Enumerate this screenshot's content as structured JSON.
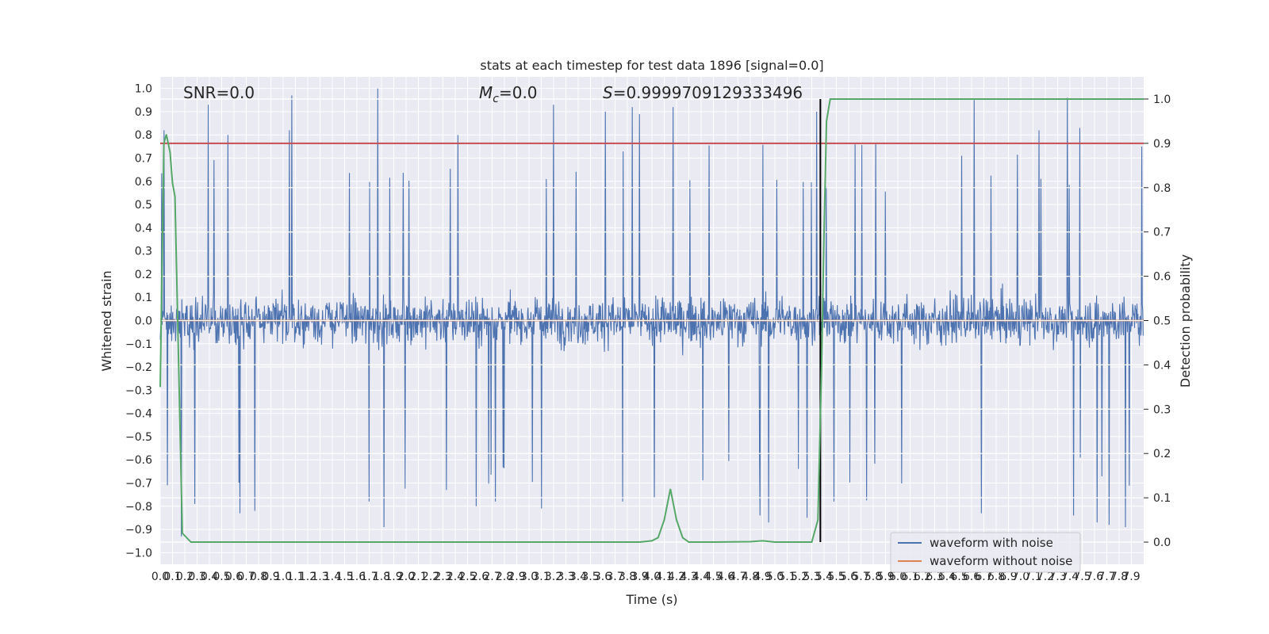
{
  "chart_data": {
    "type": "line",
    "title": "stats at each timestep for test data 1896 [signal=0.0]",
    "xlabel": "Time (s)",
    "ylabel": "Whitened strain",
    "y2label": "Detection probability",
    "xlim": [
      0.0,
      8.0
    ],
    "ylim": [
      -1.05,
      1.05
    ],
    "y2lim": [
      -0.05,
      1.05
    ],
    "xticks": [
      0.0,
      0.1,
      0.2,
      0.3,
      0.4,
      0.5,
      0.6,
      0.7,
      0.8,
      0.9,
      1.0,
      1.1,
      1.2,
      1.3,
      1.4,
      1.5,
      1.6,
      1.7,
      1.8,
      1.9,
      2.0,
      2.1,
      2.2,
      2.3,
      2.4,
      2.5,
      2.6,
      2.7,
      2.8,
      2.9,
      3.0,
      3.1,
      3.2,
      3.3,
      3.4,
      3.5,
      3.6,
      3.7,
      3.8,
      3.9,
      4.0,
      4.1,
      4.2,
      4.3,
      4.4,
      4.5,
      4.6,
      4.7,
      4.8,
      4.9,
      5.0,
      5.1,
      5.2,
      5.3,
      5.4,
      5.5,
      5.6,
      5.7,
      5.8,
      5.9,
      6.0,
      6.1,
      6.2,
      6.3,
      6.4,
      6.5,
      6.6,
      6.7,
      6.8,
      6.9,
      7.0,
      7.1,
      7.2,
      7.3,
      7.4,
      7.5,
      7.6,
      7.7,
      7.8,
      7.9
    ],
    "yticks": [
      -1.0,
      -0.9,
      -0.8,
      -0.7,
      -0.6,
      -0.5,
      -0.4,
      -0.3,
      -0.2,
      -0.1,
      0.0,
      0.1,
      0.2,
      0.3,
      0.4,
      0.5,
      0.6,
      0.7,
      0.8,
      0.9,
      1.0
    ],
    "y2ticks": [
      0.0,
      0.1,
      0.2,
      0.3,
      0.4,
      0.5,
      0.6,
      0.7,
      0.8,
      0.9,
      1.0
    ],
    "grid": true,
    "legend_position": "lower-right",
    "annotations": {
      "snr": "SNR=0.0",
      "mc_symbol": "M",
      "mc_sub": "c",
      "mc_value": "=0.0",
      "s_symbol": "S",
      "s_value": "=0.9999709129333496"
    },
    "threshold_line": {
      "axis": "y2",
      "value": 0.9,
      "color": "#c44e52"
    },
    "event_marker": {
      "x": 5.37,
      "color": "#000000"
    },
    "series": [
      {
        "name": "waveform with noise",
        "color": "#4c72b0",
        "kind": "noise",
        "sample_rate": 256,
        "duration": 8.0,
        "peaks": [
          {
            "x": 0.03,
            "y": 0.82
          },
          {
            "x": 0.06,
            "y": -0.71
          },
          {
            "x": 0.17,
            "y": -0.93
          },
          {
            "x": 0.28,
            "y": -0.79
          },
          {
            "x": 0.39,
            "y": 0.93
          },
          {
            "x": 0.55,
            "y": 0.8
          },
          {
            "x": 0.65,
            "y": -0.83
          },
          {
            "x": 0.77,
            "y": -0.82
          },
          {
            "x": 1.05,
            "y": 0.82
          },
          {
            "x": 1.07,
            "y": 0.97
          },
          {
            "x": 1.7,
            "y": -0.78
          },
          {
            "x": 1.77,
            "y": 1.0
          },
          {
            "x": 1.82,
            "y": -0.89
          },
          {
            "x": 2.42,
            "y": 0.8
          },
          {
            "x": 2.57,
            "y": -0.8
          },
          {
            "x": 3.1,
            "y": -0.81
          },
          {
            "x": 3.2,
            "y": 0.93
          },
          {
            "x": 3.62,
            "y": 0.9
          },
          {
            "x": 3.76,
            "y": -0.78
          },
          {
            "x": 3.84,
            "y": 0.92
          },
          {
            "x": 3.9,
            "y": 0.89
          },
          {
            "x": 4.17,
            "y": 0.92
          },
          {
            "x": 4.95,
            "y": -0.87
          },
          {
            "x": 4.88,
            "y": -0.84
          },
          {
            "x": 5.26,
            "y": -0.85
          },
          {
            "x": 5.34,
            "y": 0.9
          },
          {
            "x": 5.48,
            "y": -0.78
          },
          {
            "x": 6.62,
            "y": 0.95
          },
          {
            "x": 6.68,
            "y": -0.83
          },
          {
            "x": 7.15,
            "y": 0.82
          },
          {
            "x": 7.38,
            "y": 0.96
          },
          {
            "x": 7.43,
            "y": -0.84
          },
          {
            "x": 7.48,
            "y": 0.83
          },
          {
            "x": 7.62,
            "y": -0.87
          },
          {
            "x": 7.72,
            "y": -0.88
          },
          {
            "x": 7.85,
            "y": -0.89
          }
        ]
      },
      {
        "name": "waveform without noise",
        "color": "#dd8452",
        "x": [
          0.0,
          8.0
        ],
        "y": [
          0.0,
          0.0
        ]
      },
      {
        "name": "",
        "axis": "y2",
        "color": "#55a868",
        "x": [
          0.0,
          0.03,
          0.05,
          0.08,
          0.1,
          0.12,
          0.15,
          0.18,
          0.25,
          0.5,
          1.0,
          2.0,
          3.0,
          3.9,
          4.0,
          4.05,
          4.1,
          4.15,
          4.2,
          4.25,
          4.3,
          4.5,
          4.8,
          4.9,
          5.0,
          5.2,
          5.3,
          5.35,
          5.38,
          5.4,
          5.42,
          5.45,
          5.5,
          5.6,
          8.0
        ],
        "y": [
          0.35,
          0.9,
          0.92,
          0.88,
          0.81,
          0.78,
          0.4,
          0.02,
          0.0,
          0.0,
          0.0,
          0.0,
          0.0,
          0.0,
          0.003,
          0.01,
          0.05,
          0.12,
          0.05,
          0.01,
          0.0,
          0.0,
          0.001,
          0.003,
          0.0,
          0.0,
          0.0,
          0.05,
          0.4,
          0.7,
          0.95,
          1.0,
          1.0,
          1.0,
          1.0
        ]
      }
    ]
  }
}
